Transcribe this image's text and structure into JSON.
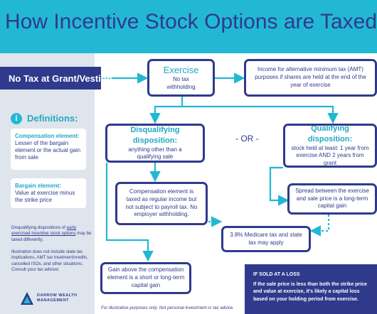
{
  "header": {
    "title": "How Incentive Stock Options are Taxed"
  },
  "grant_label": "No Tax at Grant/Vesting",
  "definitions": {
    "icon": "i",
    "title": "Definitions:",
    "compensation": {
      "title": "Compensation element:",
      "body": "Lesser of the bargain element or the actual gain from sale"
    },
    "bargain": {
      "title": "Bargain element:",
      "body": "Value at exercise minus the strike price"
    }
  },
  "notes": {
    "disqualifying_pre": "Disqualifying dispositions of ",
    "disqualifying_link": "early exercised incentive stock options",
    "disqualifying_post": " may be taxed differently.",
    "illustration": "Illustration does not include state tax implications, AMT tax treatment/credits, cancelled ISOs, and other situations. Consult your tax advisor."
  },
  "logo": {
    "line1": "DARROW WEALTH",
    "line2": "MANAGEMENT"
  },
  "nodes": {
    "exercise": {
      "title": "Exercise",
      "body": "No tax withholding"
    },
    "amt": "Income for alternative minimum tax (AMT) purposes if shares are held at the end of the year of exercise",
    "disq": {
      "title": "Disqualifying disposition:",
      "body": "anything other than a qualifying sale"
    },
    "or": "- OR -",
    "qual": {
      "title": "Qualifying disposition:",
      "body": "stock held at least: 1 year from exercise AND 2 years from grant"
    },
    "comp": "Compensation element is taxed as regular income but not subject to payroll tax. No employer withholding.",
    "spread": "Spread between the exercise and sale price is a long-term capital gain",
    "medicare": "3.8% Medicare tax and state tax may apply",
    "gain": "Gain above the compensation element is a short or long-term capital gain"
  },
  "loss": {
    "title": "IF SOLD AT A LOSS",
    "body": "If the sale price is less than both the strike price and value at exercise, it's likely a capital loss based on your holding period from exercise."
  },
  "footer": "For illustrative purposes only. Not personal investment or tax advice.",
  "colors": {
    "header_bg": "#22b8d4",
    "navy": "#2f3a8c",
    "accent": "#22a8c4",
    "sidebar_bg": "#dfe5ed"
  }
}
